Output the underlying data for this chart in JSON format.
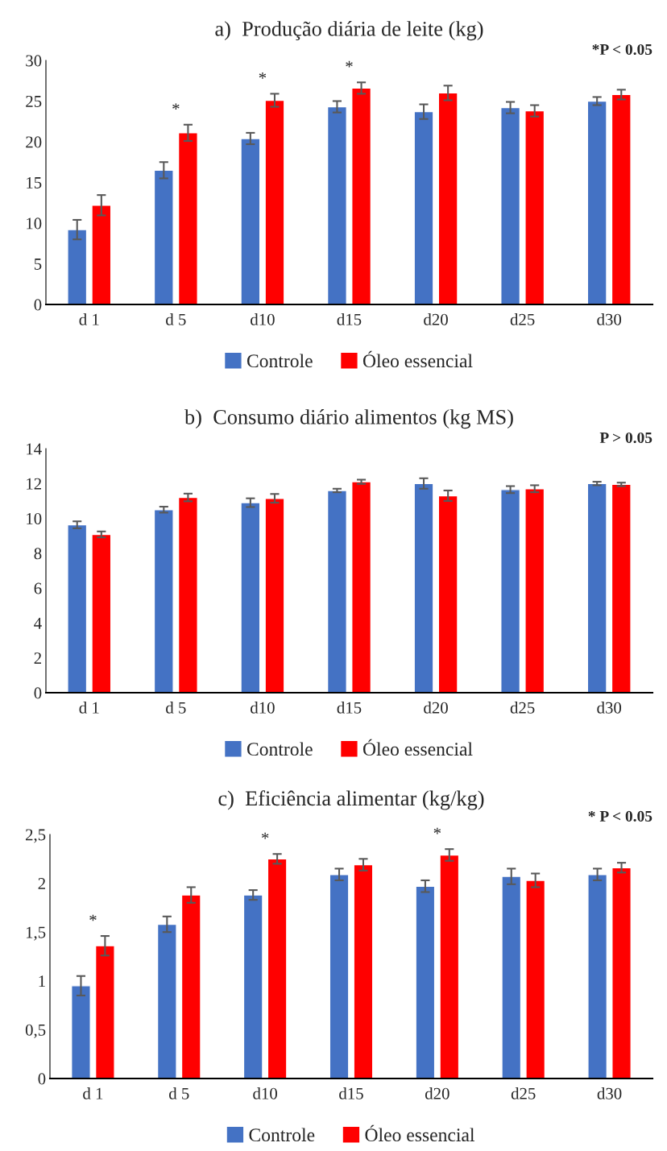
{
  "chart_data": [
    {
      "type": "bar",
      "title": "a)  Produção diária de leite (kg)",
      "categories": [
        "d 1",
        "d 5",
        "d10",
        "d15",
        "d20",
        "d25",
        "d30"
      ],
      "series": [
        {
          "name": "Controle",
          "color": "#4472c4",
          "values": [
            9.2,
            16.5,
            20.4,
            24.3,
            23.7,
            24.2,
            25.0
          ],
          "errors": [
            1.2,
            1.0,
            0.7,
            0.7,
            0.9,
            0.7,
            0.5
          ]
        },
        {
          "name": "Óleo essencial",
          "color": "#ff0000",
          "values": [
            12.2,
            21.1,
            25.1,
            26.6,
            26.0,
            23.8,
            25.8
          ],
          "errors": [
            1.25,
            1.0,
            0.8,
            0.7,
            0.9,
            0.7,
            0.6
          ]
        }
      ],
      "ylim": [
        0,
        30
      ],
      "yticks": [
        0,
        5,
        10,
        15,
        20,
        25,
        30
      ],
      "grid": false,
      "legend": "bottom",
      "annotations": [
        "*P < 0.05",
        {
          "text": "*",
          "x": "d 5",
          "y": 21.1
        },
        {
          "text": "*",
          "x": "d10",
          "y": 25.1
        },
        {
          "text": "*",
          "x": "d15",
          "y": 26.6
        }
      ]
    },
    {
      "type": "bar",
      "title": "b)  Consumo diário alimentos (kg MS)",
      "categories": [
        "d 1",
        "d 5",
        "d10",
        "d15",
        "d20",
        "d25",
        "d30"
      ],
      "series": [
        {
          "name": "Controle",
          "color": "#4472c4",
          "values": [
            9.63,
            10.5,
            10.9,
            11.6,
            12.0,
            11.65,
            12.0
          ],
          "errors": [
            0.2,
            0.17,
            0.25,
            0.1,
            0.3,
            0.2,
            0.1
          ]
        },
        {
          "name": "Óleo essencial",
          "color": "#ff0000",
          "values": [
            9.08,
            11.2,
            11.15,
            12.1,
            11.3,
            11.7,
            11.95
          ],
          "errors": [
            0.17,
            0.22,
            0.25,
            0.12,
            0.3,
            0.2,
            0.1
          ]
        }
      ],
      "ylim": [
        0,
        14
      ],
      "yticks": [
        0,
        2,
        4,
        6,
        8,
        10,
        12,
        14
      ],
      "grid": false,
      "legend": "bottom",
      "annotations": [
        "P > 0.05"
      ]
    },
    {
      "type": "bar",
      "title": "c)  Eficiência alimentar (kg/kg)",
      "categories": [
        "d 1",
        "d 5",
        "d10",
        "d15",
        "d20",
        "d25",
        "d30"
      ],
      "series": [
        {
          "name": "Controle",
          "color": "#4472c4",
          "values": [
            0.95,
            1.58,
            1.88,
            2.09,
            1.97,
            2.07,
            2.09
          ],
          "errors": [
            0.1,
            0.08,
            0.05,
            0.06,
            0.06,
            0.08,
            0.06
          ]
        },
        {
          "name": "Óleo essencial",
          "color": "#ff0000",
          "values": [
            1.36,
            1.88,
            2.25,
            2.19,
            2.29,
            2.03,
            2.16
          ],
          "errors": [
            0.1,
            0.08,
            0.05,
            0.06,
            0.06,
            0.07,
            0.05
          ]
        }
      ],
      "ylim": [
        0,
        2.5
      ],
      "yticks": [
        0,
        {
          "value": 0.5,
          "label": "0,5"
        },
        1,
        {
          "value": 1.5,
          "label": "1,5"
        },
        2,
        {
          "value": 2.5,
          "label": "2,5"
        }
      ],
      "grid": false,
      "legend": "bottom",
      "annotations": [
        "* P < 0.05",
        {
          "text": "*",
          "x": "d 1",
          "y": 1.36
        },
        {
          "text": "*",
          "x": "d10",
          "y": 2.25
        },
        {
          "text": "*",
          "x": "d20",
          "y": 2.29
        }
      ]
    }
  ]
}
